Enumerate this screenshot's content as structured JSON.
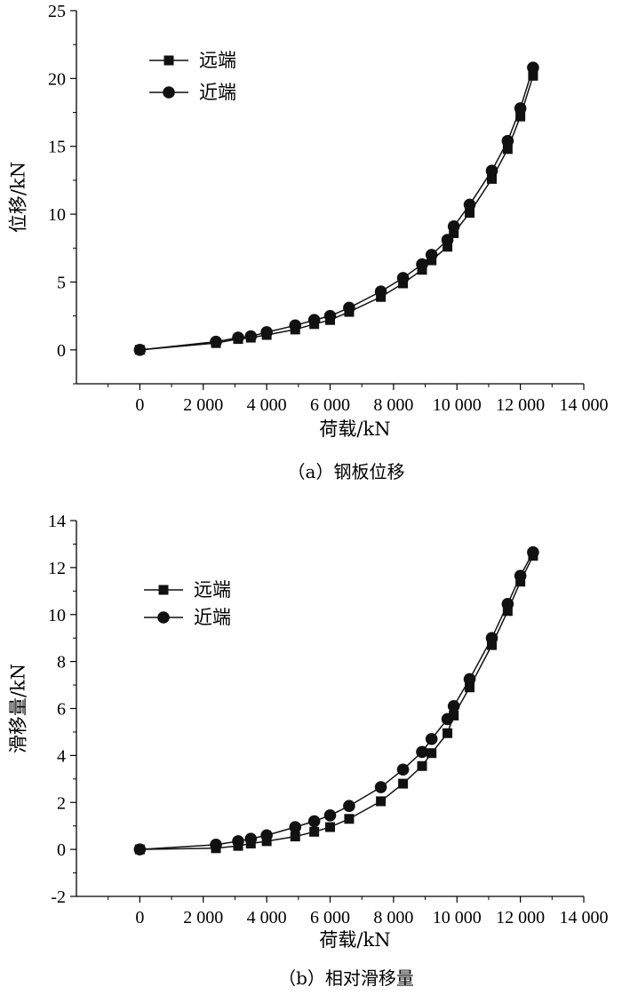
{
  "chart_data": [
    {
      "type": "line",
      "caption": "（a）钢板位移",
      "xlabel": "荷载/kN",
      "ylabel": "位移/kN",
      "xlim": [
        -2000,
        14000
      ],
      "ylim": [
        -2.5,
        25
      ],
      "xticks": [
        0,
        2000,
        4000,
        6000,
        8000,
        10000,
        12000,
        14000
      ],
      "xtick_labels": [
        "0",
        "2 000",
        "4 000",
        "6 000",
        "8 000",
        "10 000",
        "12 000",
        "14 000"
      ],
      "yticks": [
        0,
        5,
        10,
        15,
        20,
        25
      ],
      "ytick_labels": [
        "0",
        "5",
        "10",
        "15",
        "20",
        "25"
      ],
      "legend_position": "top-left",
      "x": [
        0,
        2400,
        3100,
        3500,
        4000,
        4900,
        5500,
        6000,
        6600,
        7600,
        8300,
        8900,
        9200,
        9700,
        9900,
        10400,
        11100,
        11600,
        12000,
        12400
      ],
      "series": [
        {
          "name": "远端",
          "marker": "square",
          "values": [
            0,
            0.5,
            0.8,
            0.9,
            1.1,
            1.5,
            1.9,
            2.2,
            2.8,
            3.9,
            4.9,
            5.9,
            6.6,
            7.6,
            8.6,
            10.1,
            12.6,
            14.8,
            17.2,
            20.2
          ]
        },
        {
          "name": "近端",
          "marker": "circle",
          "values": [
            0,
            0.6,
            0.9,
            1.0,
            1.3,
            1.8,
            2.2,
            2.5,
            3.1,
            4.3,
            5.3,
            6.3,
            7.0,
            8.1,
            9.1,
            10.7,
            13.2,
            15.4,
            17.8,
            20.8
          ]
        }
      ]
    },
    {
      "type": "line",
      "caption": "（b）相对滑移量",
      "xlabel": "荷载/kN",
      "ylabel": "滑移量/kN",
      "xlim": [
        -2000,
        14000
      ],
      "ylim": [
        -2,
        14
      ],
      "xticks": [
        0,
        2000,
        4000,
        6000,
        8000,
        10000,
        12000,
        14000
      ],
      "xtick_labels": [
        "0",
        "2 000",
        "4 000",
        "6 000",
        "8 000",
        "10 000",
        "12 000",
        "14 000"
      ],
      "yticks": [
        -2,
        0,
        2,
        4,
        6,
        8,
        10,
        12,
        14
      ],
      "ytick_labels": [
        "-2",
        "0",
        "2",
        "4",
        "6",
        "8",
        "10",
        "12",
        "14"
      ],
      "legend_position": "top-left",
      "x": [
        0,
        2400,
        3100,
        3500,
        4000,
        4900,
        5500,
        6000,
        6600,
        7600,
        8300,
        8900,
        9200,
        9700,
        9900,
        10400,
        11100,
        11600,
        12000,
        12400
      ],
      "series": [
        {
          "name": "远端",
          "marker": "square",
          "values": [
            0,
            0.05,
            0.15,
            0.25,
            0.35,
            0.55,
            0.75,
            0.95,
            1.3,
            2.05,
            2.8,
            3.55,
            4.1,
            4.95,
            5.7,
            6.9,
            8.7,
            10.15,
            11.4,
            12.5
          ]
        },
        {
          "name": "近端",
          "marker": "circle",
          "values": [
            0,
            0.2,
            0.35,
            0.45,
            0.6,
            0.95,
            1.2,
            1.45,
            1.85,
            2.65,
            3.4,
            4.15,
            4.7,
            5.55,
            6.1,
            7.25,
            9.0,
            10.45,
            11.65,
            12.65
          ]
        }
      ]
    }
  ]
}
